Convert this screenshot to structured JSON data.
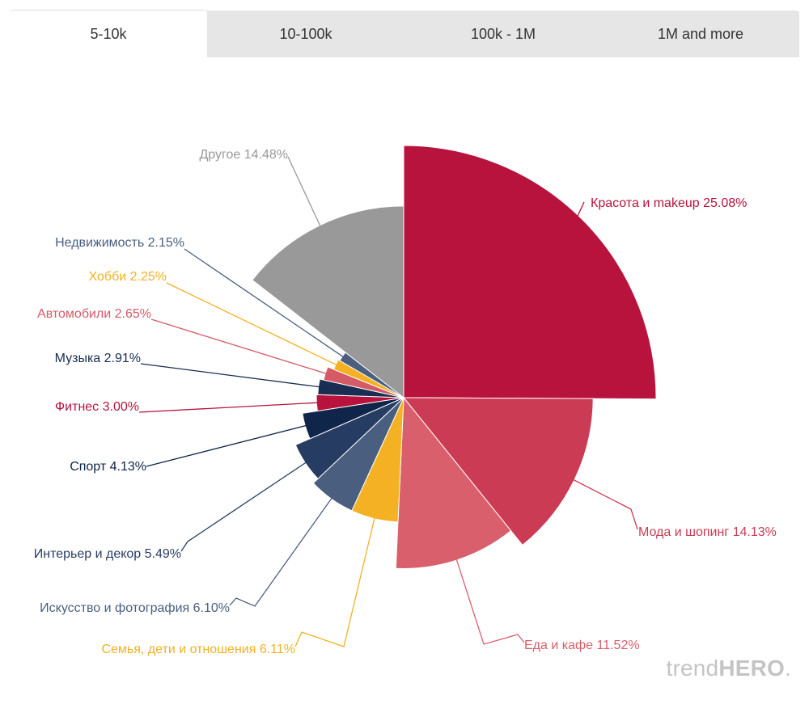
{
  "tabs": [
    {
      "label": "5-10k",
      "active": true
    },
    {
      "label": "10-100k",
      "active": false
    },
    {
      "label": "100k - 1M",
      "active": false
    },
    {
      "label": "1M and more",
      "active": false
    }
  ],
  "brand": {
    "light": "trend",
    "bold": "HERO",
    "dot": "."
  },
  "chart_data": {
    "type": "pie",
    "variant": "variable-radius",
    "title": "",
    "unit": "%",
    "slices": [
      {
        "name": "Красота и makeup",
        "value": 25.08,
        "label": "Красота и makeup 25.08%",
        "color": "#b8133c"
      },
      {
        "name": "Мода и шопинг",
        "value": 14.13,
        "label": "Мода и шопинг 14.13%",
        "color": "#cb3b53"
      },
      {
        "name": "Еда и кафе",
        "value": 11.52,
        "label": "Еда и кафе 11.52%",
        "color": "#da5f6c"
      },
      {
        "name": "Семья, дети и отношения",
        "value": 6.11,
        "label": "Семья, дети и отношения 6.11%",
        "color": "#f3b123"
      },
      {
        "name": "Искусство и фотография",
        "value": 6.1,
        "label": "Искусство и фотография 6.10%",
        "color": "#4a5f80"
      },
      {
        "name": "Интерьер и декор",
        "value": 5.49,
        "label": "Интерьер и декор 5.49%",
        "color": "#273c62"
      },
      {
        "name": "Спорт",
        "value": 4.13,
        "label": "Спорт 4.13%",
        "color": "#0f2549"
      },
      {
        "name": "Фитнес",
        "value": 3.0,
        "label": "Фитнес 3.00%",
        "color": "#b8133c"
      },
      {
        "name": "Музыка",
        "value": 2.91,
        "label": "Музыка 2.91%",
        "color": "#1a2d52"
      },
      {
        "name": "Автомобили",
        "value": 2.65,
        "label": "Автомобили 2.65%",
        "color": "#d45a66"
      },
      {
        "name": "Хобби",
        "value": 2.25,
        "label": "Хобби 2.25%",
        "color": "#f3b123"
      },
      {
        "name": "Недвижимость",
        "value": 2.15,
        "label": "Недвижимость 2.15%",
        "color": "#4a5f80"
      },
      {
        "name": "Другое",
        "value": 14.48,
        "label": "Другое 14.48%",
        "color": "#999999"
      }
    ]
  }
}
